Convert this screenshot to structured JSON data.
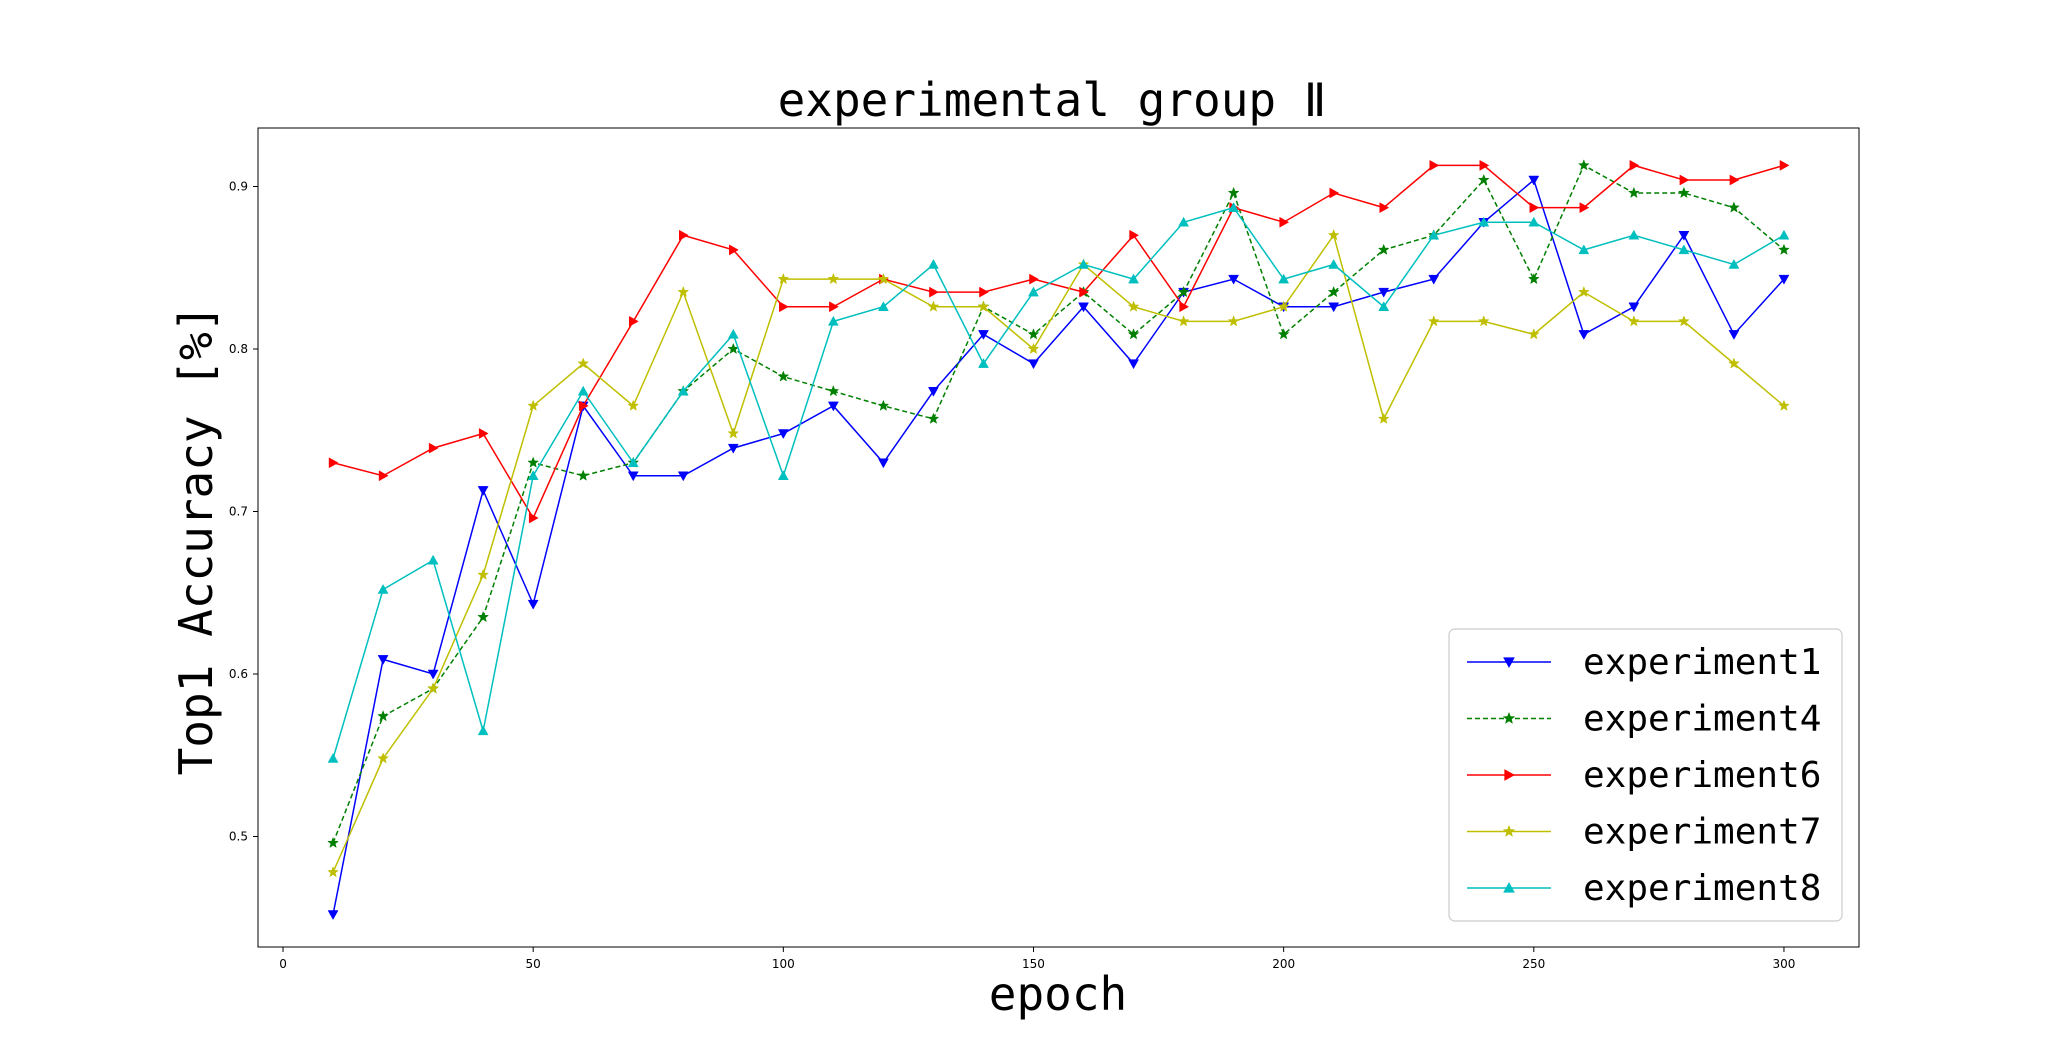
{
  "chart_data": {
    "type": "line",
    "title": "experimental group Ⅱ",
    "xlabel": "epoch",
    "ylabel": "Top1 Accuracy [%]",
    "xlim": [
      -5,
      315
    ],
    "ylim": [
      0.432,
      0.936
    ],
    "xticks": [
      0,
      50,
      100,
      150,
      200,
      250,
      300
    ],
    "yticks": [
      0.5,
      0.6,
      0.7,
      0.8,
      0.9
    ],
    "grid": false,
    "legend_position": "lower-right",
    "x": [
      10,
      20,
      30,
      40,
      50,
      60,
      70,
      80,
      90,
      100,
      110,
      120,
      130,
      140,
      150,
      160,
      170,
      180,
      190,
      200,
      210,
      220,
      230,
      240,
      250,
      260,
      270,
      280,
      290,
      300
    ],
    "series": [
      {
        "name": "experiment1",
        "color": "#0000ff",
        "marker": "triangle-down",
        "dash": "solid",
        "values": [
          0.452,
          0.609,
          0.6,
          0.713,
          0.643,
          0.765,
          0.722,
          0.722,
          0.739,
          0.748,
          0.765,
          0.73,
          0.774,
          0.809,
          0.791,
          0.826,
          0.791,
          0.835,
          0.843,
          0.826,
          0.826,
          0.835,
          0.843,
          0.878,
          0.904,
          0.809,
          0.826,
          0.87,
          0.809,
          0.843
        ]
      },
      {
        "name": "experiment4",
        "color": "#008000",
        "marker": "star",
        "dash": "dashed",
        "values": [
          0.496,
          0.574,
          0.591,
          0.635,
          0.73,
          0.722,
          0.73,
          0.774,
          0.8,
          0.783,
          0.774,
          0.765,
          0.757,
          0.826,
          0.809,
          0.835,
          0.809,
          0.835,
          0.896,
          0.809,
          0.835,
          0.861,
          0.87,
          0.904,
          0.843,
          0.913,
          0.896,
          0.896,
          0.887,
          0.861
        ]
      },
      {
        "name": "experiment6",
        "color": "#ff0000",
        "marker": "triangle-right",
        "dash": "solid",
        "values": [
          0.73,
          0.722,
          0.739,
          0.748,
          0.696,
          0.765,
          0.817,
          0.87,
          0.861,
          0.826,
          0.826,
          0.843,
          0.835,
          0.835,
          0.843,
          0.835,
          0.87,
          0.826,
          0.887,
          0.878,
          0.896,
          0.887,
          0.913,
          0.913,
          0.887,
          0.887,
          0.913,
          0.904,
          0.904,
          0.913
        ]
      },
      {
        "name": "experiment7",
        "color": "#bfbf00",
        "marker": "star",
        "dash": "solid",
        "values": [
          0.478,
          0.548,
          0.591,
          0.661,
          0.765,
          0.791,
          0.765,
          0.835,
          0.748,
          0.843,
          0.843,
          0.843,
          0.826,
          0.826,
          0.8,
          0.852,
          0.826,
          0.817,
          0.817,
          0.826,
          0.87,
          0.757,
          0.817,
          0.817,
          0.809,
          0.835,
          0.817,
          0.817,
          0.791,
          0.765
        ]
      },
      {
        "name": "experiment8",
        "color": "#00bfbf",
        "marker": "triangle-up",
        "dash": "solid",
        "values": [
          0.548,
          0.652,
          0.67,
          0.565,
          0.722,
          0.774,
          0.73,
          0.774,
          0.809,
          0.722,
          0.817,
          0.826,
          0.852,
          0.791,
          0.835,
          0.852,
          0.843,
          0.878,
          0.887,
          0.843,
          0.852,
          0.826,
          0.87,
          0.878,
          0.878,
          0.861,
          0.87,
          0.861,
          0.852,
          0.87
        ]
      }
    ]
  }
}
